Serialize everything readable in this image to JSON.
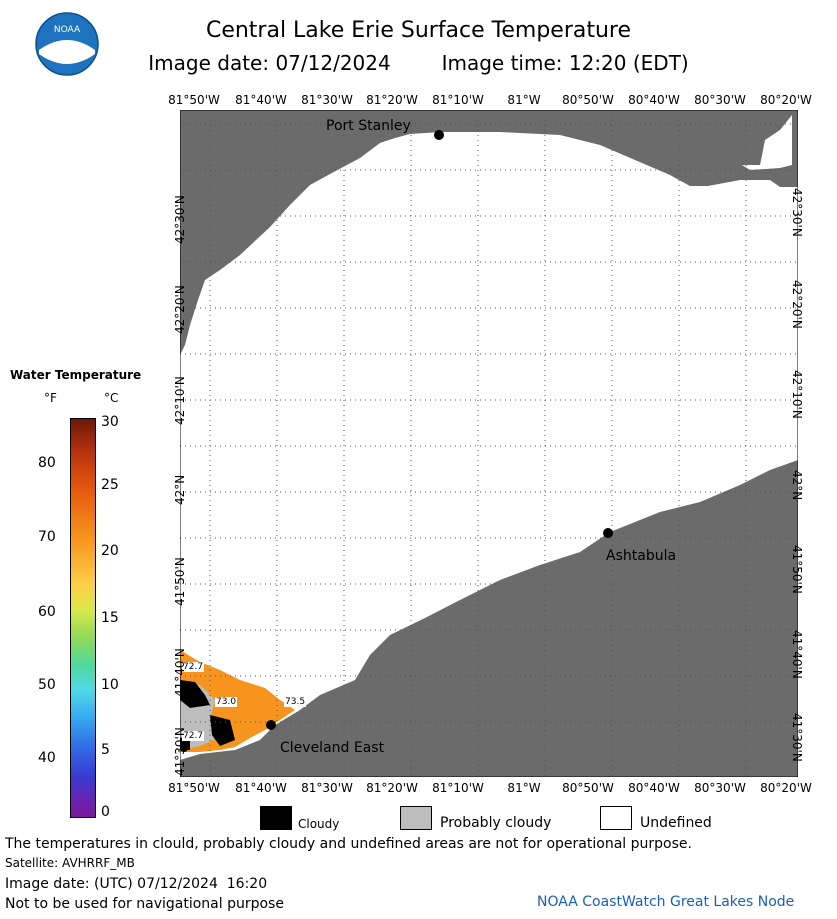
{
  "header": {
    "title": "Central Lake Erie Surface Temperature",
    "image_date_label": "Image date: 07/12/2024",
    "image_time_label": "Image time: 12:20 (EDT)"
  },
  "logo": {
    "text": "NOAA"
  },
  "longitude_ticks": [
    "81°50'W",
    "81°40'W",
    "81°30'W",
    "81°20'W",
    "81°10'W",
    "81°W",
    "80°50'W",
    "80°40'W",
    "80°30'W",
    "80°20'W"
  ],
  "latitude_ticks": [
    "42°30'N",
    "42°20'N",
    "42°10'N",
    "42°N",
    "41°50'N",
    "41°40'N",
    "41°30'N"
  ],
  "places": {
    "port_stanley": "Port Stanley",
    "ashtabula": "Ashtabula",
    "cleveland_east": "Cleveland East"
  },
  "temperature_readings": [
    "72.7",
    "73.0",
    "73.5",
    "72.7"
  ],
  "legend": {
    "title": "Water Temperature",
    "unit_f": "°F",
    "unit_c": "°C",
    "f_ticks": [
      "80",
      "70",
      "60",
      "50",
      "40"
    ],
    "c_ticks": [
      "30",
      "25",
      "20",
      "15",
      "10",
      "5",
      "0"
    ]
  },
  "key": {
    "cloudy": "Cloudy",
    "probably_cloudy": "Probably cloudy",
    "undefined": "Undefined"
  },
  "footer": {
    "disclaimer": "The temperatures in clould, probably cloudy and undefined areas are not for operational purpose.",
    "satellite": "Satellite: AVHRRF_MB",
    "utc_date": "Image date: (UTC) 07/12/2024  16:20",
    "nav_warning": "Not to be used for navigational purpose",
    "credit": "NOAA CoastWatch Great Lakes Node"
  },
  "colors": {
    "land": "#6b6b6b",
    "water_undefined": "#ffffff",
    "warm_water": "#f7941d",
    "probably_cloudy": "#bdbdbd",
    "cloudy": "#000000",
    "credit_text": "#1a5fb4"
  }
}
